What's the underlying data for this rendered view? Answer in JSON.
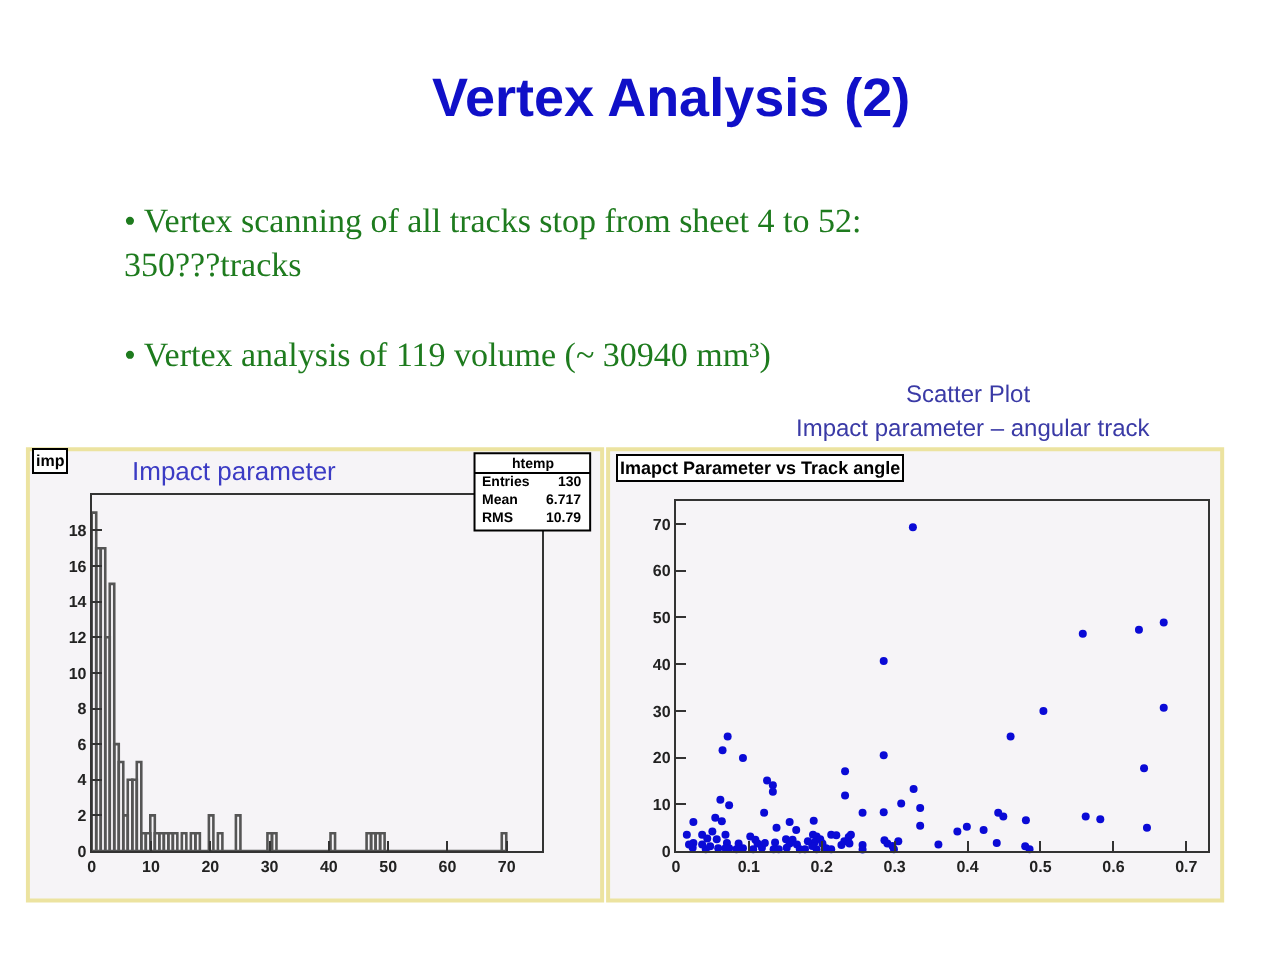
{
  "chart_data": [
    {
      "type": "other",
      "title": "Vertex Analysis (2)",
      "annotations": [
        "• Vertex scanning of all tracks stop from sheet 4 to 52:\n350???tracks",
        "• Vertex analysis of 119 volume (~ 30940 mm³)"
      ]
    },
    {
      "type": "histogram",
      "title": "Impact parameter",
      "annotations": [
        "imp",
        "htemp",
        "Entries",
        "130",
        "Mean",
        "6.717",
        "RMS",
        "10.79"
      ],
      "bins": [
        0,
        0.76,
        1.52,
        2.28,
        3.04,
        3.8,
        4.56,
        5.32,
        6.08,
        6.84,
        7.6,
        8.36,
        9.12,
        9.88,
        10.64,
        11.4,
        12.16,
        12.92,
        13.68,
        14.44,
        15.2,
        15.96,
        16.72,
        17.48,
        18.24,
        19.76,
        20.52,
        21.28,
        22.04,
        24.32,
        25.08,
        29.64,
        30.4,
        31.16,
        40.28,
        41.04,
        46.36,
        47.12,
        47.88,
        48.64,
        49.4,
        69.16,
        69.92
      ],
      "values": [
        19,
        17,
        17,
        12,
        15,
        6,
        5,
        2,
        4,
        4,
        5,
        1,
        1,
        2,
        1,
        1,
        1,
        1,
        1,
        0,
        1,
        0,
        1,
        1,
        0,
        2,
        0,
        1,
        0,
        2,
        0,
        1,
        1,
        0,
        1,
        0,
        1,
        1,
        1,
        1,
        0,
        1
      ],
      "color": "#555555",
      "xlim": [
        0,
        76
      ],
      "xticks": [
        0,
        10,
        20,
        30,
        40,
        50,
        60,
        70
      ],
      "ylim": [
        0,
        20
      ],
      "yticks": [
        0,
        2,
        4,
        6,
        8,
        10,
        12,
        14,
        16,
        18
      ]
    },
    {
      "type": "scatter",
      "title": "Imapct Parameter vs Track angle",
      "annotations": [
        "Scatter Plot",
        "Impact parameter – angular track"
      ],
      "x": [
        0.325,
        0.285,
        0.285,
        0.558,
        0.635,
        0.669,
        0.669,
        0.504,
        0.459,
        0.642,
        0.646,
        0.562,
        0.582,
        0.48,
        0.442,
        0.449,
        0.422,
        0.399,
        0.386,
        0.44,
        0.479,
        0.485,
        0.36,
        0.232,
        0.232,
        0.326,
        0.309,
        0.335,
        0.335,
        0.285,
        0.256,
        0.071,
        0.064,
        0.092,
        0.061,
        0.073,
        0.125,
        0.133,
        0.133,
        0.121,
        0.138,
        0.156,
        0.165,
        0.189,
        0.054,
        0.063,
        0.024,
        0.015,
        0.036,
        0.043,
        0.024,
        0.023,
        0.041,
        0.05,
        0.056,
        0.07,
        0.073,
        0.058,
        0.086,
        0.092,
        0.102,
        0.109,
        0.112,
        0.118,
        0.122,
        0.136,
        0.151,
        0.156,
        0.16,
        0.166,
        0.17,
        0.188,
        0.193,
        0.19,
        0.198,
        0.201,
        0.206,
        0.213,
        0.22,
        0.231,
        0.237,
        0.24,
        0.238,
        0.256,
        0.256,
        0.286,
        0.29,
        0.297,
        0.305,
        0.299,
        0.213,
        0.193,
        0.036,
        0.047,
        0.018,
        0.083,
        0.134,
        0.106,
        0.068,
        0.141,
        0.152,
        0.177,
        0.187,
        0.068,
        0.227,
        0.181
      ],
      "values": [
        69.3,
        40.7,
        20.5,
        46.5,
        47.4,
        48.9,
        30.7,
        30,
        24.5,
        17.7,
        5,
        7.4,
        6.8,
        6.6,
        8.2,
        7.4,
        4.5,
        5.2,
        4.2,
        1.7,
        1,
        0.4,
        1.4,
        17.1,
        11.9,
        13.3,
        10.2,
        9.2,
        5.4,
        8.3,
        8.2,
        24.5,
        21.6,
        19.9,
        11,
        9.8,
        15.1,
        14.1,
        12.7,
        8.2,
        5,
        6.2,
        4.5,
        6.5,
        7.1,
        6.4,
        6.2,
        3.5,
        3.5,
        2.7,
        1.7,
        0.7,
        0.4,
        4.2,
        2.5,
        1.7,
        0.6,
        0.6,
        1.6,
        0.6,
        3.1,
        2.4,
        1.6,
        0.7,
        1.7,
        1.8,
        2.5,
        1.6,
        2.4,
        1.4,
        0.4,
        3.5,
        3.1,
        1.8,
        2.5,
        1.6,
        0.6,
        3.5,
        3.4,
        2.1,
        3,
        3.5,
        1.6,
        1.3,
        0.3,
        2.3,
        1.6,
        1.1,
        2.1,
        0.4,
        0.4,
        0.4,
        1.4,
        1,
        1.4,
        0.4,
        0.4,
        0.4,
        3.5,
        0.4,
        0.7,
        0.4,
        1.1,
        0.6,
        1.3,
        2.1
      ],
      "color": "#0a0ad6",
      "marker": "circle",
      "xlim": [
        0,
        0.73
      ],
      "xticks": [
        0,
        0.1,
        0.2,
        0.3,
        0.4,
        0.5,
        0.6,
        0.7
      ],
      "ylim": [
        0,
        75
      ],
      "yticks": [
        0,
        10,
        20,
        30,
        40,
        50,
        60,
        70
      ]
    }
  ]
}
